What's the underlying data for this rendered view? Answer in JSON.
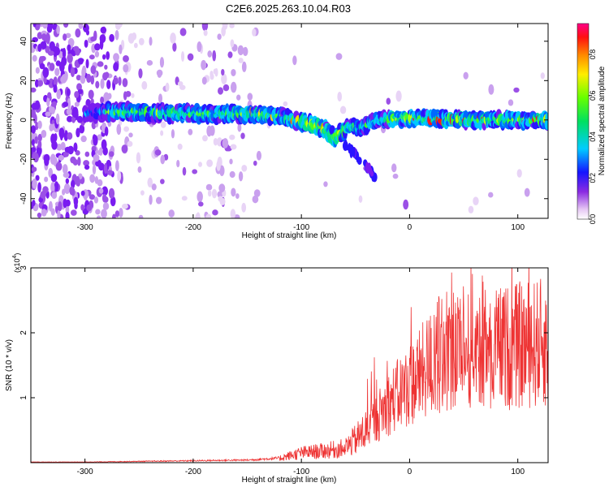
{
  "title": "C2E6.2025.263.10.04.R03",
  "colorbar": {
    "label": "Normalized spectral amplitude",
    "ticks": [
      "0.0",
      "0.2",
      "0.4",
      "0.6",
      "0.8"
    ],
    "tick_values": [
      0.0,
      0.2,
      0.4,
      0.6,
      0.8
    ],
    "range": [
      0,
      0.95
    ]
  },
  "chart_data": [
    {
      "type": "heatmap",
      "xlabel": "Height of straight line (km)",
      "ylabel": "Frequency (Hz)",
      "xlim": [
        -350,
        128
      ],
      "ylim": [
        -50,
        49
      ],
      "xticks": [
        -300,
        -200,
        -100,
        0,
        100
      ],
      "yticks": [
        -40,
        -20,
        0,
        20,
        40
      ],
      "grid": false,
      "ridge": {
        "x": [
          -300,
          -280,
          -250,
          -200,
          -150,
          -120,
          -100,
          -80,
          -70,
          -65,
          -55,
          -45,
          -30,
          0,
          50,
          128
        ],
        "y": [
          3,
          4,
          4,
          3,
          3,
          2,
          -1,
          -4,
          -9,
          -7,
          -3,
          -4,
          0,
          1,
          0,
          0
        ]
      },
      "tail": {
        "x": [
          -60,
          -50,
          -42,
          -30
        ],
        "y": [
          -12,
          -18,
          -22,
          -30
        ]
      }
    },
    {
      "type": "line",
      "xlabel": "Height of straight line (km)",
      "ylabel": "SNR (10 * v/v)",
      "multiplier": "(x10",
      "multiplier_exp": "4",
      "multiplier_close": ")",
      "xlim": [
        -350,
        128
      ],
      "ylim": [
        0,
        3
      ],
      "xticks": [
        -300,
        -200,
        -100,
        0,
        100
      ],
      "yticks": [
        1,
        2,
        3
      ],
      "color": "#ee3333",
      "series": [
        {
          "x": [
            -350,
            -300,
            -250,
            -200,
            -150,
            -120,
            -100,
            -80,
            -60,
            -50,
            -40,
            -30,
            -20,
            -10,
            0,
            10,
            20,
            30,
            40,
            50,
            60,
            70,
            80,
            100,
            128
          ],
          "y": [
            0.01,
            0.01,
            0.02,
            0.03,
            0.04,
            0.07,
            0.15,
            0.18,
            0.22,
            0.35,
            0.5,
            0.7,
            0.9,
            1.05,
            1.2,
            1.35,
            1.55,
            1.7,
            1.8,
            1.85,
            1.9,
            1.85,
            1.75,
            1.8,
            1.85
          ]
        }
      ]
    }
  ]
}
